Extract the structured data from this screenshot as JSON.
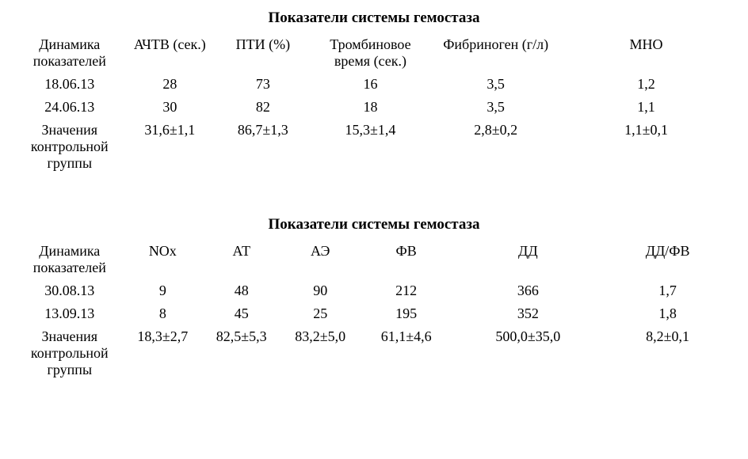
{
  "table1": {
    "title": "Показатели системы гемостаза",
    "columns": [
      "Динамика показателей",
      "АЧТВ (сек.)",
      "ПТИ (%)",
      "Тромбиновое время (сек.)",
      "Фибриноген (г/л)",
      "МНО"
    ],
    "col_widths": [
      "15%",
      "13%",
      "13%",
      "17%",
      "18%",
      "24%"
    ],
    "rows": [
      [
        "18.06.13",
        "28",
        "73",
        "16",
        "3,5",
        "1,2"
      ],
      [
        "24.06.13",
        "30",
        "82",
        "18",
        "3,5",
        "1,1"
      ],
      [
        "Значения контрольной группы",
        "31,6±1,1",
        "86,7±1,3",
        "15,3±1,4",
        "2,8±0,2",
        "1,1±0,1"
      ]
    ]
  },
  "table2": {
    "title": "Показатели системы гемостаза",
    "columns": [
      "Динамика показателей",
      "NOх",
      "АТ",
      "АЭ",
      "ФВ",
      "ДД",
      "ДД/ФВ"
    ],
    "col_widths": [
      "15%",
      "11%",
      "11%",
      "11%",
      "13%",
      "21%",
      "18%"
    ],
    "rows": [
      [
        "30.08.13",
        "9",
        "48",
        "90",
        "212",
        "366",
        "1,7"
      ],
      [
        "13.09.13",
        "8",
        "45",
        "25",
        "195",
        "352",
        "1,8"
      ],
      [
        "Значения контрольной группы",
        "18,3±2,7",
        "82,5±5,3",
        "83,2±5,0",
        "61,1±4,6",
        "500,0±35,0",
        "8,2±0,1"
      ]
    ]
  }
}
